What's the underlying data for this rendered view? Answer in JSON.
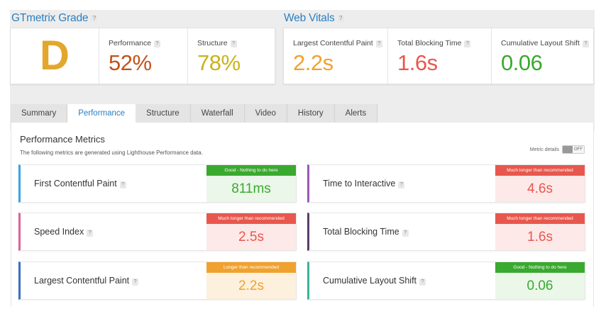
{
  "grade_section": {
    "title": "GTmetrix Grade",
    "help": "?",
    "grade": "D",
    "performance": {
      "label": "Performance",
      "value": "52%"
    },
    "structure": {
      "label": "Structure",
      "value": "78%"
    }
  },
  "vitals_section": {
    "title": "Web Vitals",
    "help": "?",
    "lcp": {
      "label": "Largest Contentful Paint",
      "value": "2.2s"
    },
    "tbt": {
      "label": "Total Blocking Time",
      "value": "1.6s"
    },
    "cls": {
      "label": "Cumulative Layout Shift",
      "value": "0.06"
    }
  },
  "tabs": [
    "Summary",
    "Performance",
    "Structure",
    "Waterfall",
    "Video",
    "History",
    "Alerts"
  ],
  "active_tab": "Performance",
  "metrics_panel": {
    "title": "Performance Metrics",
    "subtitle": "The following metrics are generated using Lighthouse Performance data.",
    "toggle_label": "Metric details",
    "toggle_state": "OFF",
    "metrics": [
      {
        "name": "First Contentful Paint",
        "value": "811ms",
        "badge": "Good - Nothing to do here",
        "status": "good"
      },
      {
        "name": "Time to Interactive",
        "value": "4.6s",
        "badge": "Much longer than recommended",
        "status": "bad"
      },
      {
        "name": "Speed Index",
        "value": "2.5s",
        "badge": "Much longer than recommended",
        "status": "bad"
      },
      {
        "name": "Total Blocking Time",
        "value": "1.6s",
        "badge": "Much longer than recommended",
        "status": "bad"
      },
      {
        "name": "Largest Contentful Paint",
        "value": "2.2s",
        "badge": "Longer than recommended",
        "status": "warn"
      },
      {
        "name": "Cumulative Layout Shift",
        "value": "0.06",
        "badge": "Good - Nothing to do here",
        "status": "good"
      }
    ]
  },
  "colors": {
    "accent": "#2a7fc1",
    "grade_d": "#e2a72c",
    "performance": "#c2521b",
    "structure": "#c9b31a",
    "lcp": "#f0a22e",
    "tbt": "#e8574d",
    "cls": "#3aa92f"
  }
}
